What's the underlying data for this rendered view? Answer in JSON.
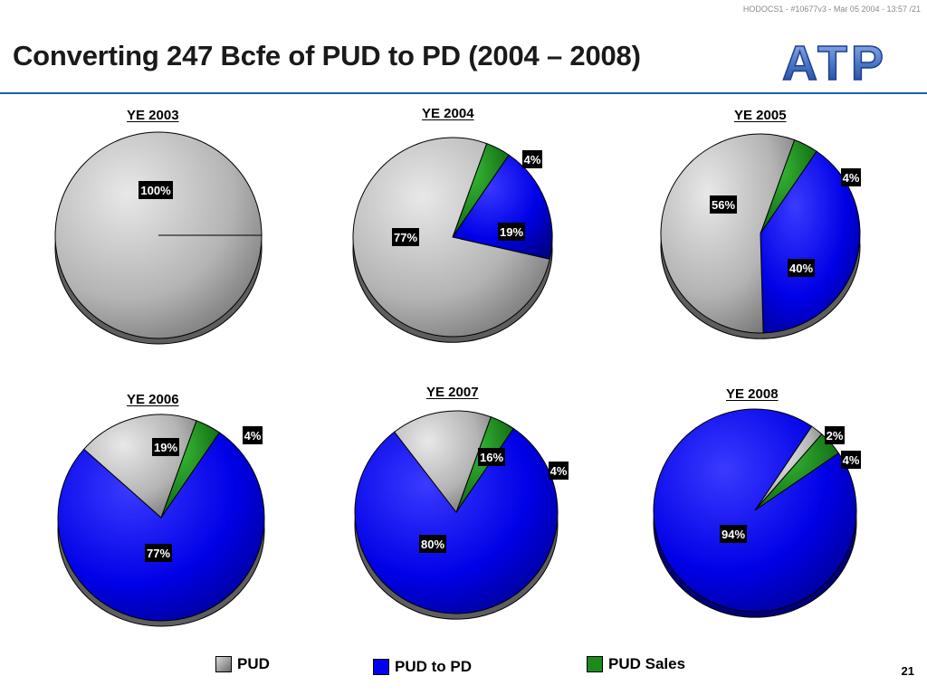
{
  "header": {
    "doc_id": "HODOCS1 - #10677v3 - Mar 05 2004 - 13:57 /21",
    "title": "Converting 247 Bcfe of PUD to PD (2004 – 2008)",
    "logo_text": "ATP"
  },
  "legend": {
    "items": [
      {
        "label": "PUD",
        "color": "#9a9a9a"
      },
      {
        "label": "PUD to PD",
        "color": "#0000ee"
      },
      {
        "label": "PUD Sales",
        "color": "#1a8a1a"
      }
    ]
  },
  "page_number": "21",
  "chart_data": [
    {
      "type": "pie",
      "title": "YE 2003",
      "categories": [
        "PUD"
      ],
      "values": [
        100
      ],
      "labels": [
        "100%"
      ]
    },
    {
      "type": "pie",
      "title": "YE 2004",
      "categories": [
        "PUD Sales",
        "PUD to PD",
        "PUD"
      ],
      "values": [
        4,
        19,
        77
      ],
      "labels": [
        "4%",
        "19%",
        "77%"
      ]
    },
    {
      "type": "pie",
      "title": "YE 2005",
      "categories": [
        "PUD Sales",
        "PUD to PD",
        "PUD"
      ],
      "values": [
        4,
        40,
        56
      ],
      "labels": [
        "4%",
        "40%",
        "56%"
      ]
    },
    {
      "type": "pie",
      "title": "YE 2006",
      "categories": [
        "PUD Sales",
        "PUD to PD",
        "PUD"
      ],
      "values": [
        4,
        77,
        19
      ],
      "labels": [
        "4%",
        "77%",
        "19%"
      ]
    },
    {
      "type": "pie",
      "title": "YE 2007",
      "categories": [
        "PUD Sales",
        "PUD to PD",
        "PUD"
      ],
      "values": [
        4,
        80,
        16
      ],
      "labels": [
        "4%",
        "80%",
        "16%"
      ]
    },
    {
      "type": "pie",
      "title": "YE 2008",
      "categories": [
        "PUD",
        "PUD Sales",
        "PUD to PD"
      ],
      "values": [
        2,
        4,
        94
      ],
      "labels": [
        "2%",
        "4%",
        "94%"
      ]
    }
  ]
}
